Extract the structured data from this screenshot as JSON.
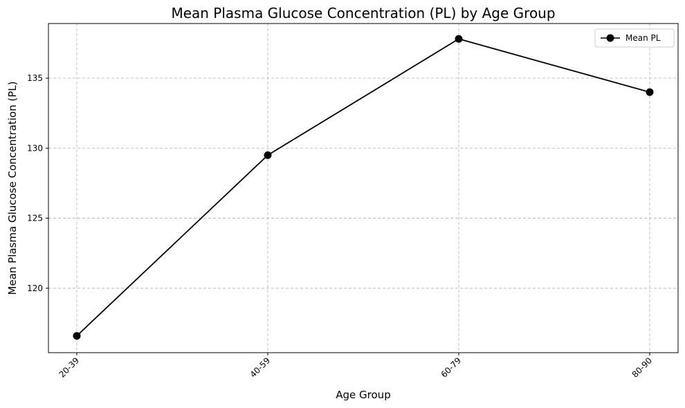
{
  "chart_data": {
    "type": "line",
    "title": "Mean Plasma Glucose Concentration (PL) by Age Group",
    "xlabel": "Age Group",
    "ylabel": "Mean Plasma Glucose Concentration (PL)",
    "categories": [
      "20-39",
      "40-59",
      "60-79",
      "80-90"
    ],
    "series": [
      {
        "name": "Mean PL",
        "values": [
          116.6,
          129.5,
          137.8,
          134.0
        ],
        "color": "#000000",
        "marker": "circle"
      }
    ],
    "ylim": [
      115.4,
      138.9
    ],
    "yticks": [
      120,
      125,
      130,
      135
    ],
    "ytick_labels": [
      "120",
      "125",
      "130",
      "135"
    ],
    "grid": true,
    "legend_position": "top-right"
  }
}
